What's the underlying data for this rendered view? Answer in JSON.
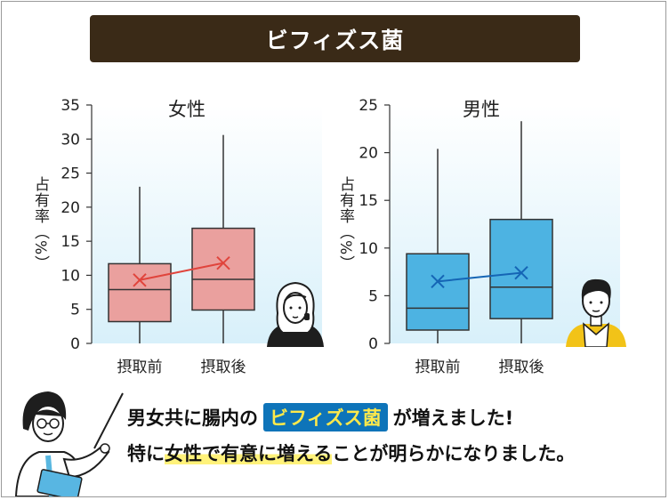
{
  "header": {
    "title": "ビフィズス菌"
  },
  "chart_data": [
    {
      "type": "box",
      "title": "女性",
      "ylabel": "占有率（%）",
      "ylim": [
        0,
        35
      ],
      "yticks": [
        0,
        5,
        10,
        15,
        20,
        25,
        30,
        35
      ],
      "categories": [
        "摂取前",
        "摂取後"
      ],
      "boxes": [
        {
          "min": 0,
          "q1": 3.2,
          "median": 7.9,
          "q3": 11.7,
          "max": 23.0,
          "mean": 9.3
        },
        {
          "min": 0,
          "q1": 4.9,
          "median": 9.4,
          "q3": 16.9,
          "max": 30.6,
          "mean": 11.8
        }
      ],
      "box_color": "#eaa09e",
      "mean_color": "#e0443c"
    },
    {
      "type": "box",
      "title": "男性",
      "ylabel": "占有率（%）",
      "ylim": [
        0,
        25
      ],
      "yticks": [
        0,
        5,
        10,
        15,
        20,
        25
      ],
      "categories": [
        "摂取前",
        "摂取後"
      ],
      "boxes": [
        {
          "min": 0,
          "q1": 1.4,
          "median": 3.7,
          "q3": 9.4,
          "max": 20.4,
          "mean": 6.5
        },
        {
          "min": 0,
          "q1": 2.6,
          "median": 5.9,
          "q3": 13.0,
          "max": 23.3,
          "mean": 7.4
        }
      ],
      "box_color": "#4db3e2",
      "mean_color": "#1565b5"
    }
  ],
  "caption": {
    "line1_a": "男女共に腸内の",
    "line1_tag": "ビフィズス菌",
    "line1_b": "が増えました!",
    "line2_a": "特に",
    "line2_hl": "女性で有意に増える",
    "line2_b": "ことが明らかになりました。"
  }
}
